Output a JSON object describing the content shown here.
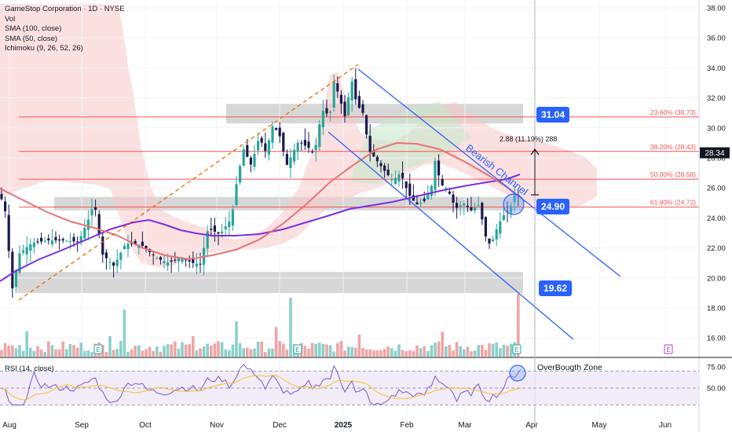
{
  "legend": {
    "title": "GameStop Corporation · 1D · NYSE",
    "vol": "Vol",
    "sma100": "SMA (100, close)",
    "sma50": "SMA (50, close)",
    "ichimoku": "Ichimoku (9, 26, 52, 26)"
  },
  "rsi_legend": "RSI (14, close)",
  "colors": {
    "up": "#26a69a",
    "down": "#1a1a4e",
    "sma50": "#7b2fe0",
    "sma100": "#e57373",
    "channel": "#2962ff",
    "fib": "#ef5350",
    "cloud": "#f7c6c6",
    "cloud_green": "#c8e6c9",
    "zone": "#c9c9c9",
    "tag": "#2962ff",
    "current": "#131722"
  },
  "tags": {
    "t31": "31.04",
    "t2490": "24.90",
    "t1962": "19.62"
  },
  "current_price": "28.34",
  "measure_label": "2.88 (11.19%) 288",
  "channel_label": "Bearish Channel",
  "rsi_zone_label": "OverBougth Zone",
  "earnings_marker": "E",
  "chart_data": [
    {
      "type": "candlestick",
      "x_ticks": [
        "Aug",
        "Sep",
        "Oct",
        "Nov",
        "Dec",
        "2025",
        "Feb",
        "Mar",
        "Apr",
        "May",
        "Jun"
      ],
      "y_ticks": [
        "38.00",
        "36.00",
        "34.00",
        "32.00",
        "30.00",
        "28.00",
        "26.00",
        "24.00",
        "22.00",
        "20.00",
        "18.00",
        "16.00"
      ],
      "ylim": [
        15.5,
        38.5
      ],
      "fib_levels": [
        {
          "label": "23.60% (30.73)",
          "value": 30.73
        },
        {
          "label": "38.20% (28.43)",
          "value": 28.43
        },
        {
          "label": "50.00% (26.58)",
          "value": 26.58
        },
        {
          "label": "61.80% (24.72)",
          "value": 24.72
        }
      ],
      "zones": [
        {
          "low": 30.3,
          "high": 31.6
        },
        {
          "low": 24.5,
          "high": 25.4
        },
        {
          "low": 19.0,
          "high": 20.4
        }
      ],
      "levels": [
        31.04,
        24.9,
        19.62
      ],
      "current_price": 28.34
    },
    {
      "type": "line",
      "name": "RSI",
      "y_ticks": [
        "75.00",
        "50.00"
      ],
      "levels": [
        70,
        50,
        30
      ]
    }
  ]
}
